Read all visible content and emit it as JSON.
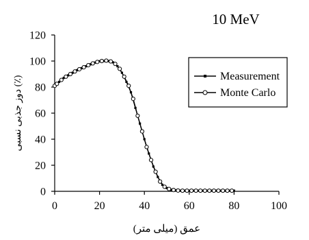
{
  "chart_data": {
    "type": "line",
    "title": "10 MeV",
    "xlabel": "عمق (میلی متر)",
    "ylabel": "دوز جذبی نسبی (٪)",
    "xlim": [
      0,
      100
    ],
    "ylim": [
      0,
      120
    ],
    "x_ticks": [
      "0",
      "20",
      "40",
      "60",
      "80",
      "100"
    ],
    "y_ticks": [
      "0",
      "20",
      "40",
      "60",
      "80",
      "100",
      "120"
    ],
    "grid": false,
    "legend_position": "right",
    "series": [
      {
        "name": "Measurement",
        "marker": "square",
        "x": [
          0,
          2,
          4,
          6,
          8,
          10,
          12,
          14,
          16,
          18,
          20,
          22,
          24,
          26,
          28,
          30,
          32,
          34,
          36,
          38,
          40,
          42,
          44,
          46,
          48,
          50,
          52,
          54,
          56,
          58,
          60,
          62,
          64,
          66,
          68,
          70,
          72,
          74,
          76,
          78,
          80
        ],
        "y": [
          81,
          84,
          87,
          89,
          91,
          93,
          94.5,
          96,
          97.5,
          98.8,
          99.8,
          100,
          100,
          99,
          96,
          91,
          84,
          76,
          64,
          52,
          40,
          29,
          19,
          11,
          5,
          2.5,
          1.2,
          0.8,
          0.5,
          0.5,
          0.5,
          0.5,
          0.5,
          0.5,
          0.5,
          0.5,
          0.5,
          0.5,
          0.5,
          0.5,
          0.5
        ]
      },
      {
        "name": "Monte Carlo",
        "marker": "circle",
        "x": [
          0,
          1,
          3,
          5,
          7,
          9,
          11,
          13,
          15,
          17,
          19,
          21,
          23,
          25,
          27,
          29,
          31,
          33,
          35,
          37,
          39,
          41,
          43,
          45,
          47,
          49,
          51,
          53,
          55,
          57,
          59,
          61,
          63,
          65,
          67,
          69,
          71,
          73,
          75,
          77,
          79
        ],
        "y": [
          81,
          82.5,
          85.5,
          88,
          90,
          92,
          93.7,
          95.2,
          96.8,
          98.2,
          99.3,
          100,
          100.3,
          99.7,
          97.8,
          94,
          88,
          81,
          71,
          58,
          46,
          34,
          24,
          15,
          7.5,
          3.5,
          1.8,
          1,
          0.6,
          0.5,
          0.5,
          0.5,
          0.5,
          0.5,
          0.5,
          0.5,
          0.5,
          0.5,
          0.5,
          0.5,
          0.5
        ]
      }
    ]
  }
}
